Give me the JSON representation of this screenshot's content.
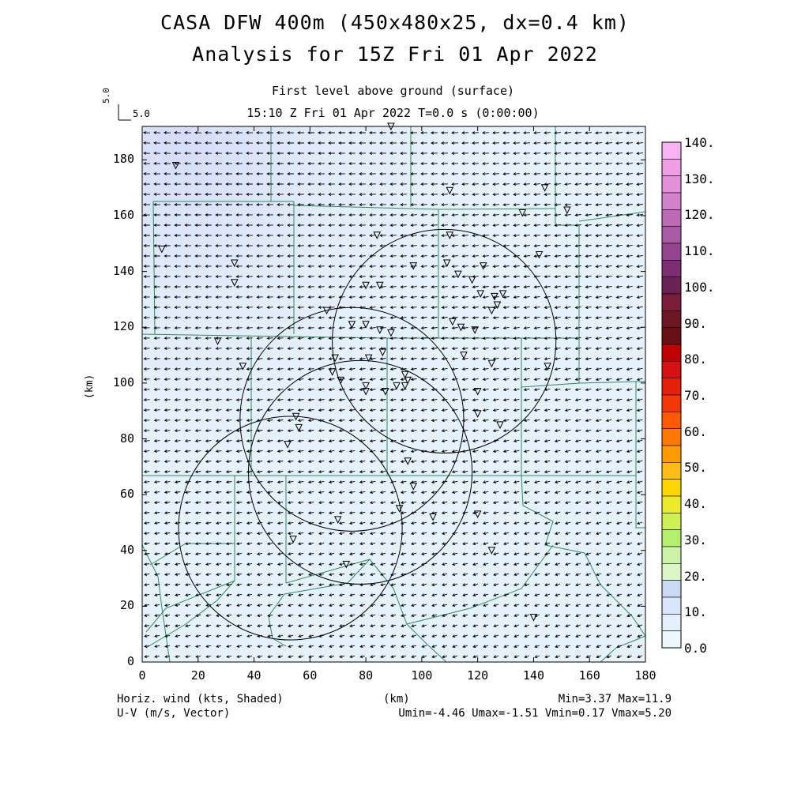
{
  "title": {
    "line1": "CASA DFW 400m (450x480x25, dx=0.4 km)",
    "line2": "Analysis for 15Z Fri 01 Apr 2022"
  },
  "subtitle": {
    "line1": "First level above ground (surface)",
    "line2": "15:10 Z Fri 01 Apr 2022    T=0.0 s (0:00:00)"
  },
  "reference_vector": {
    "label": "5.0",
    "vertical_label": "5.0"
  },
  "axes": {
    "x_unit": "(km)",
    "y_unit": "(km)",
    "x_ticks": [
      "0",
      "20",
      "40",
      "60",
      "80",
      "100",
      "120",
      "140",
      "160",
      "180"
    ],
    "y_ticks": [
      "0",
      "20",
      "40",
      "60",
      "80",
      "100",
      "120",
      "140",
      "160",
      "180"
    ],
    "x_range_km": [
      0,
      180
    ],
    "y_range_km": [
      0,
      192
    ]
  },
  "colorbar": {
    "labels": [
      "140.",
      "130.",
      "120.",
      "110.",
      "100.",
      "90.",
      "80.",
      "70.",
      "60.",
      "50.",
      "40.",
      "30.",
      "20.",
      "10.",
      "0.0"
    ],
    "colors": [
      "#f7b4f2",
      "#ef9ee6",
      "#e391da",
      "#d382cc",
      "#bb6ab4",
      "#a85aa3",
      "#93468f",
      "#7d2d72",
      "#6a2153",
      "#7a1d39",
      "#6c1623",
      "#660f14",
      "#bf0000",
      "#d61111",
      "#e41f0c",
      "#f23708",
      "#ff5a00",
      "#ff7900",
      "#ff9b00",
      "#ffbd16",
      "#ffd600",
      "#ecec2c",
      "#cdf054",
      "#b5f06c",
      "#cdf3a8",
      "#dcf6c8",
      "#c9d9f6",
      "#d9e5f9",
      "#e4f1fb",
      "#eef8fc"
    ]
  },
  "footer": {
    "left1": "Horiz. wind (kts, Shaded)",
    "left2": "U-V (m/s, Vector)",
    "center1": "(km)",
    "right1": "Min=3.37 Max=11.9",
    "right2": "Umin=-4.46 Umax=-1.51 Vmin=0.17 Vmax=5.20"
  },
  "colors": {
    "field_fill": "#e0ecfa",
    "boundary": "#2e8b57",
    "vector": "#000000"
  },
  "radar_rings_km": [
    {
      "cx": 78,
      "cy": 68,
      "r": 40
    },
    {
      "cx": 108,
      "cy": 115,
      "r": 40
    },
    {
      "cx": 75,
      "cy": 87,
      "r": 40
    },
    {
      "cx": 53,
      "cy": 48,
      "r": 40
    }
  ],
  "stations_km": [
    [
      12,
      178
    ],
    [
      33,
      143
    ],
    [
      33,
      136
    ],
    [
      27,
      115
    ],
    [
      36,
      106
    ],
    [
      89,
      192
    ],
    [
      84,
      153
    ],
    [
      80,
      135
    ],
    [
      85,
      135
    ],
    [
      97,
      142
    ],
    [
      110,
      153
    ],
    [
      109,
      143
    ],
    [
      113,
      139
    ],
    [
      118,
      137
    ],
    [
      121,
      132
    ],
    [
      126,
      131
    ],
    [
      129,
      132
    ],
    [
      127,
      128
    ],
    [
      125,
      126
    ],
    [
      122,
      142
    ],
    [
      111,
      122
    ],
    [
      114,
      120
    ],
    [
      119,
      119
    ],
    [
      75,
      121
    ],
    [
      80,
      121
    ],
    [
      85,
      119
    ],
    [
      89,
      118
    ],
    [
      66,
      126
    ],
    [
      68,
      104
    ],
    [
      69,
      109
    ],
    [
      71,
      101
    ],
    [
      81,
      109
    ],
    [
      86,
      111
    ],
    [
      80,
      99
    ],
    [
      80,
      97
    ],
    [
      87,
      97
    ],
    [
      94,
      103
    ],
    [
      94,
      99
    ],
    [
      91,
      99
    ],
    [
      95,
      101
    ],
    [
      120,
      97
    ],
    [
      120,
      89
    ],
    [
      128,
      85
    ],
    [
      115,
      110
    ],
    [
      125,
      107
    ],
    [
      145,
      106
    ],
    [
      55,
      88
    ],
    [
      56,
      84
    ],
    [
      52,
      78
    ],
    [
      95,
      72
    ],
    [
      97,
      63
    ],
    [
      92,
      55
    ],
    [
      104,
      52
    ],
    [
      120,
      53
    ],
    [
      70,
      51
    ],
    [
      54,
      44
    ],
    [
      73,
      35
    ],
    [
      125,
      40
    ],
    [
      140,
      16
    ],
    [
      110,
      169
    ],
    [
      136,
      161
    ],
    [
      152,
      162
    ],
    [
      144,
      170
    ],
    [
      142,
      146
    ],
    [
      7,
      148
    ]
  ]
}
